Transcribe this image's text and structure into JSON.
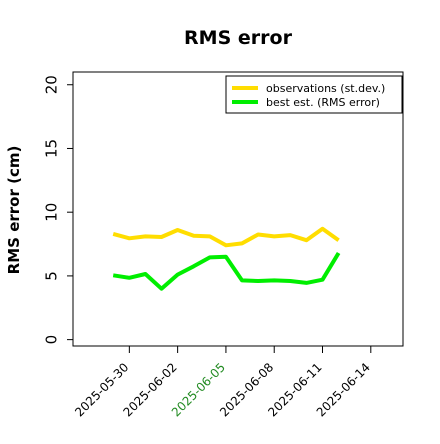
{
  "chart_data": {
    "type": "line",
    "title": "RMS error",
    "xlabel": "",
    "ylabel": "RMS error (cm)",
    "ylim": [
      -0.5,
      21
    ],
    "yticks": [
      0,
      5,
      10,
      15,
      20
    ],
    "xlim": [
      "2025-05-26T12:00",
      "2025-06-16T00:00"
    ],
    "xticks": [
      {
        "date": "2025-05-30",
        "label": "2025-05-30",
        "color": "#000000"
      },
      {
        "date": "2025-06-02",
        "label": "2025-06-02",
        "color": "#000000"
      },
      {
        "date": "2025-06-05",
        "label": "2025-06-05",
        "color": "#228b22"
      },
      {
        "date": "2025-06-08",
        "label": "2025-06-08",
        "color": "#000000"
      },
      {
        "date": "2025-06-11",
        "label": "2025-06-11",
        "color": "#000000"
      },
      {
        "date": "2025-06-14",
        "label": "2025-06-14",
        "color": "#000000"
      }
    ],
    "x": [
      "2025-05-29",
      "2025-05-30",
      "2025-05-31",
      "2025-06-01",
      "2025-06-02",
      "2025-06-03",
      "2025-06-04",
      "2025-06-05",
      "2025-06-06",
      "2025-06-07",
      "2025-06-08",
      "2025-06-09",
      "2025-06-10",
      "2025-06-11",
      "2025-06-12"
    ],
    "series": [
      {
        "name": "observations (st.dev.)",
        "color": "#ffdd00",
        "values": [
          8.3,
          7.95,
          8.1,
          8.05,
          8.6,
          8.15,
          8.1,
          7.4,
          7.55,
          8.25,
          8.1,
          8.2,
          7.8,
          8.7,
          7.8
        ]
      },
      {
        "name": "best est. (RMS error)",
        "color": "#00ee00",
        "values": [
          5.05,
          4.85,
          5.15,
          4.0,
          5.1,
          5.75,
          6.45,
          6.5,
          4.65,
          4.6,
          4.65,
          4.6,
          4.45,
          4.7,
          6.8
        ]
      }
    ],
    "legend_position": "top-right",
    "grid": false
  }
}
